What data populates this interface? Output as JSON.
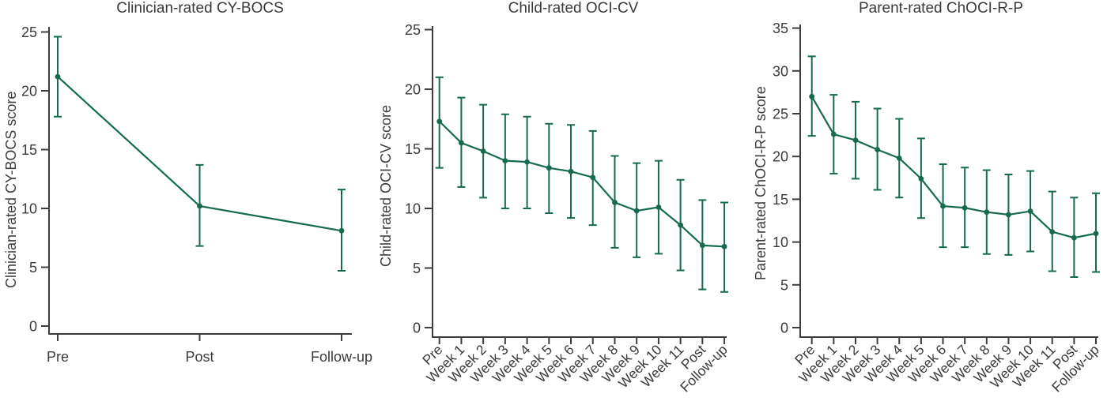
{
  "colors": {
    "line": "#156A51",
    "axis": "#3D3D3D",
    "text": "#3A3A3A",
    "background": "#FFFFFF"
  },
  "chart_data": [
    {
      "type": "line",
      "title": "Clinician-rated CY-BOCS",
      "ylabel": "Clinician-rated CY-BOCS score",
      "xlabel": "",
      "categories": [
        "Pre",
        "Post",
        "Follow-up"
      ],
      "values": [
        21.2,
        10.2,
        8.1
      ],
      "ci_low": [
        17.8,
        6.8,
        4.7
      ],
      "ci_high": [
        24.6,
        13.7,
        11.6
      ],
      "ylim": [
        0,
        25
      ],
      "yticks": [
        0,
        5,
        10,
        15,
        20,
        25
      ],
      "x_tick_rotation": 0,
      "error_bars": true,
      "markers": "filled-circle",
      "grid": false,
      "legend": "none"
    },
    {
      "type": "line",
      "title": "Child-rated OCI-CV",
      "ylabel": "Child-rated OCI-CV score",
      "xlabel": "",
      "categories": [
        "Pre",
        "Week 1",
        "Week 2",
        "Week 3",
        "Week 4",
        "Week 5",
        "Week 6",
        "Week 7",
        "Week 8",
        "Week 9",
        "Week 10",
        "Week 11",
        "Post",
        "Follow-up"
      ],
      "values": [
        17.3,
        15.5,
        14.8,
        14.0,
        13.9,
        13.4,
        13.1,
        12.6,
        10.5,
        9.8,
        10.1,
        8.6,
        6.9,
        6.8
      ],
      "ci_low": [
        13.4,
        11.8,
        10.9,
        10.0,
        10.0,
        9.6,
        9.2,
        8.6,
        6.7,
        5.9,
        6.2,
        4.8,
        3.2,
        3.0
      ],
      "ci_high": [
        21.0,
        19.3,
        18.7,
        17.9,
        17.7,
        17.1,
        17.0,
        16.5,
        14.4,
        13.8,
        14.0,
        12.4,
        10.7,
        10.5
      ],
      "ylim": [
        0,
        25
      ],
      "yticks": [
        0,
        5,
        10,
        15,
        20,
        25
      ],
      "x_tick_rotation": 45,
      "error_bars": true,
      "markers": "filled-circle",
      "grid": false,
      "legend": "none"
    },
    {
      "type": "line",
      "title": "Parent-rated ChOCI-R-P",
      "ylabel": "Parent-rated ChOCI-R-P score",
      "xlabel": "",
      "categories": [
        "Pre",
        "Week 1",
        "Week 2",
        "Week 3",
        "Week 4",
        "Week 5",
        "Week 6",
        "Week 7",
        "Week 8",
        "Week 9",
        "Week 10",
        "Week 11",
        "Post",
        "Follow-up"
      ],
      "values": [
        27.0,
        22.6,
        21.9,
        20.8,
        19.8,
        17.4,
        14.2,
        14.0,
        13.5,
        13.2,
        13.6,
        11.2,
        10.5,
        11.0
      ],
      "ci_low": [
        22.4,
        18.0,
        17.4,
        16.1,
        15.2,
        12.8,
        9.4,
        9.4,
        8.6,
        8.5,
        8.9,
        6.6,
        5.9,
        6.5
      ],
      "ci_high": [
        31.7,
        27.2,
        26.4,
        25.6,
        24.4,
        22.1,
        19.1,
        18.7,
        18.4,
        17.9,
        18.3,
        15.9,
        15.2,
        15.7
      ],
      "ylim": [
        0,
        35
      ],
      "yticks": [
        0,
        5,
        10,
        15,
        20,
        25,
        30,
        35
      ],
      "x_tick_rotation": 45,
      "error_bars": true,
      "markers": "filled-circle",
      "grid": false,
      "legend": "none"
    }
  ]
}
